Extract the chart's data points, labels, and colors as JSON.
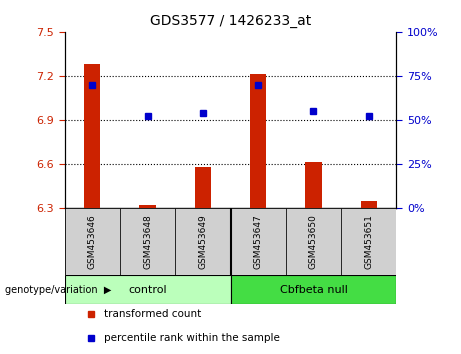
{
  "title": "GDS3577 / 1426233_at",
  "samples": [
    "GSM453646",
    "GSM453648",
    "GSM453649",
    "GSM453647",
    "GSM453650",
    "GSM453651"
  ],
  "groups": [
    "control",
    "control",
    "control",
    "Cbfbeta null",
    "Cbfbeta null",
    "Cbfbeta null"
  ],
  "transformed_count": [
    7.28,
    6.32,
    6.58,
    7.21,
    6.61,
    6.35
  ],
  "percentile_rank": [
    70,
    52,
    54,
    70,
    55,
    52
  ],
  "ylim_left": [
    6.3,
    7.5
  ],
  "ylim_right": [
    0,
    100
  ],
  "yticks_left": [
    6.3,
    6.6,
    6.9,
    7.2,
    7.5
  ],
  "yticks_right": [
    0,
    25,
    50,
    75,
    100
  ],
  "bar_color": "#cc2200",
  "dot_color": "#0000cc",
  "control_color": "#bbffbb",
  "null_color": "#44dd44",
  "group_label": "genotype/variation",
  "legend_items": [
    "transformed count",
    "percentile rank within the sample"
  ],
  "left_tick_color": "#cc2200",
  "right_tick_color": "#0000cc"
}
